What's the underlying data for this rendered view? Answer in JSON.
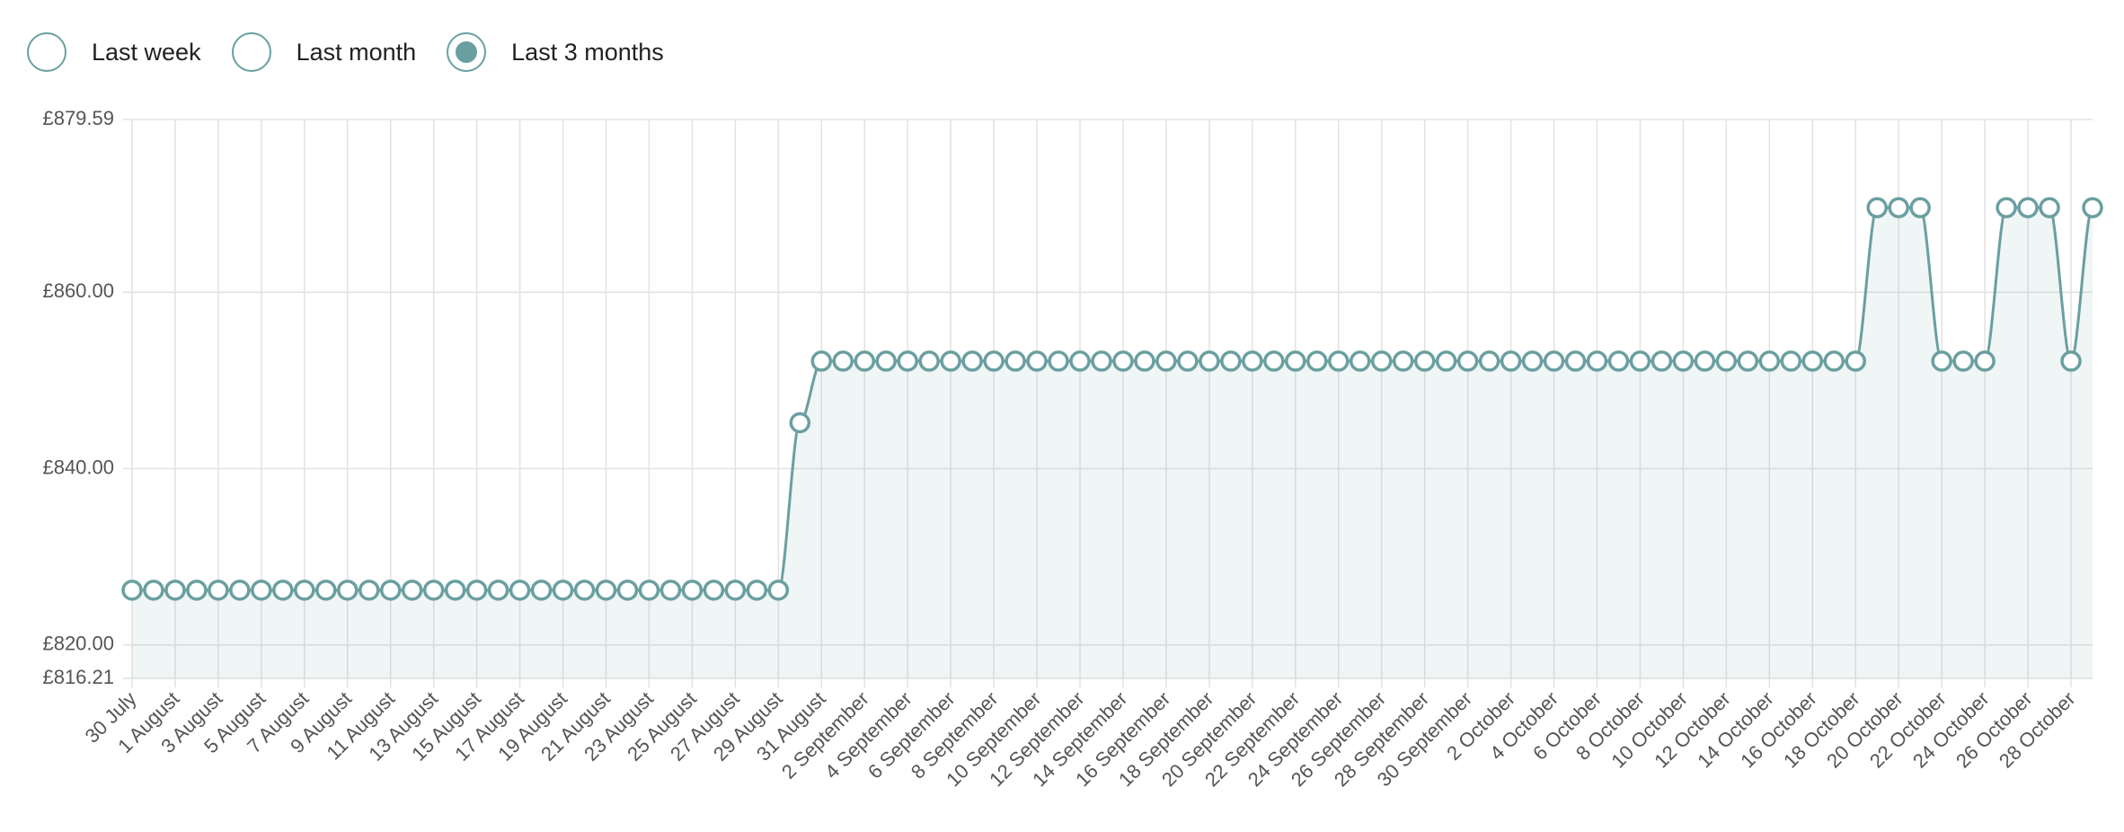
{
  "radios": [
    {
      "label": "Last week",
      "selected": false
    },
    {
      "label": "Last month",
      "selected": false
    },
    {
      "label": "Last 3 months",
      "selected": true
    }
  ],
  "chart_data": {
    "type": "line",
    "color": "#6a9fa0",
    "grid": true,
    "categories": [
      "30 July",
      null,
      "1 August",
      null,
      "3 August",
      null,
      "5 August",
      null,
      "7 August",
      null,
      "9 August",
      null,
      "11 August",
      null,
      "13 August",
      null,
      "15 August",
      null,
      "17 August",
      null,
      "19 August",
      null,
      "21 August",
      null,
      "23 August",
      null,
      "25 August",
      null,
      "27 August",
      null,
      "29 August",
      null,
      "31 August",
      null,
      "2 September",
      null,
      "4 September",
      null,
      "6 September",
      null,
      "8 September",
      null,
      "10 September",
      null,
      "12 September",
      null,
      "14 September",
      null,
      "16 September",
      null,
      "18 September",
      null,
      "20 September",
      null,
      "22 September",
      null,
      "24 September",
      null,
      "26 September",
      null,
      "28 September",
      null,
      "30 September",
      null,
      "2 October",
      null,
      "4 October",
      null,
      "6 October",
      null,
      "8 October",
      null,
      "10 October",
      null,
      "12 October",
      null,
      "14 October",
      null,
      "16 October",
      null,
      "18 October",
      null,
      "20 October",
      null,
      "22 October",
      null,
      "24 October",
      null,
      "26 October",
      null,
      "28 October",
      null
    ],
    "values": [
      826.21,
      826.21,
      826.21,
      826.21,
      826.21,
      826.21,
      826.21,
      826.21,
      826.21,
      826.21,
      826.21,
      826.21,
      826.21,
      826.21,
      826.21,
      826.21,
      826.21,
      826.21,
      826.21,
      826.21,
      826.21,
      826.21,
      826.21,
      826.21,
      826.21,
      826.21,
      826.21,
      826.21,
      826.21,
      826.21,
      826.21,
      845.2,
      852.19,
      852.19,
      852.19,
      852.19,
      852.19,
      852.19,
      852.19,
      852.19,
      852.19,
      852.19,
      852.19,
      852.19,
      852.19,
      852.19,
      852.19,
      852.19,
      852.19,
      852.19,
      852.19,
      852.19,
      852.19,
      852.19,
      852.19,
      852.19,
      852.19,
      852.19,
      852.19,
      852.19,
      852.19,
      852.19,
      852.19,
      852.19,
      852.19,
      852.19,
      852.19,
      852.19,
      852.19,
      852.19,
      852.19,
      852.19,
      852.19,
      852.19,
      852.19,
      852.19,
      852.19,
      852.19,
      852.19,
      852.19,
      852.19,
      869.59,
      869.59,
      869.59,
      852.19,
      852.19,
      852.19,
      869.59,
      869.59,
      869.59,
      852.19,
      869.59
    ],
    "ylim": [
      816.21,
      879.59
    ],
    "yticks": [
      {
        "value": 816.21,
        "label": "£816.21"
      },
      {
        "value": 820,
        "label": "£820.00"
      },
      {
        "value": 840,
        "label": "£840.00"
      },
      {
        "value": 860,
        "label": "£860.00"
      },
      {
        "value": 879.59,
        "label": "£879.59"
      }
    ]
  }
}
